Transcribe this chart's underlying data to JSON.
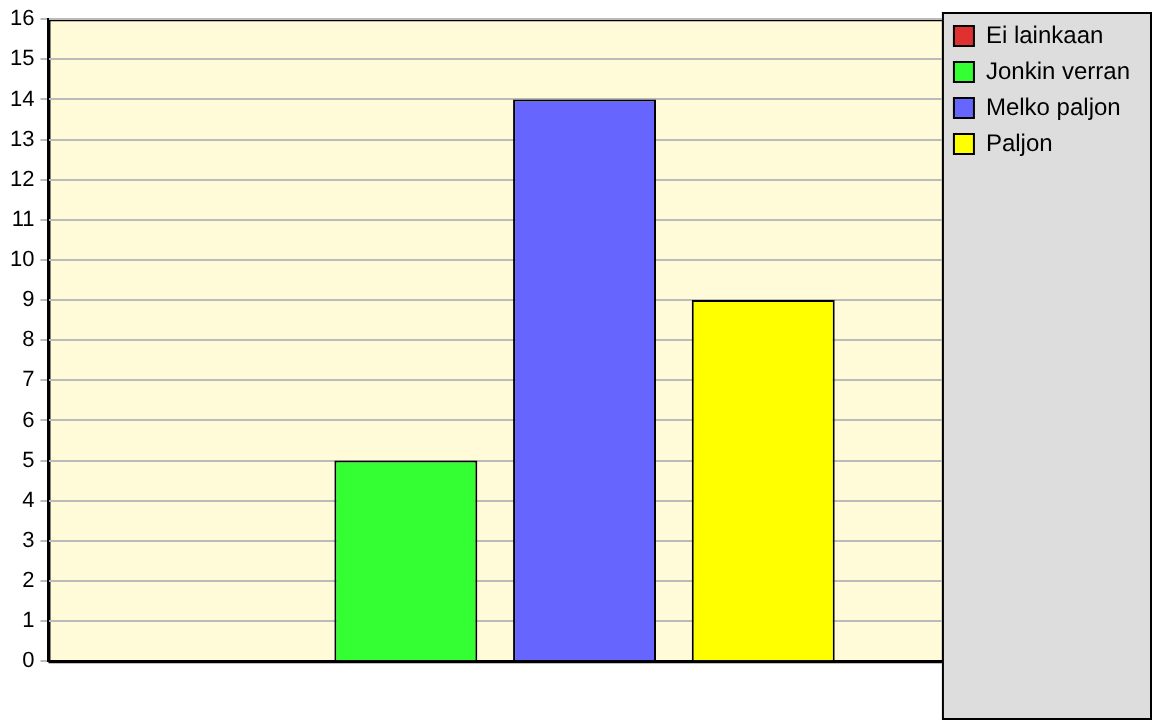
{
  "chart_data": {
    "type": "bar",
    "categories": [
      null
    ],
    "series": [
      {
        "name": "Ei lainkaan",
        "color": "#e03030",
        "values": [
          0
        ]
      },
      {
        "name": "Jonkin verran",
        "color": "#33ff33",
        "values": [
          5
        ]
      },
      {
        "name": "Melko paljon",
        "color": "#6666ff",
        "values": [
          14
        ]
      },
      {
        "name": "Paljon",
        "color": "#ffff00",
        "values": [
          9
        ]
      }
    ],
    "ylim": [
      0,
      16
    ],
    "yticks": [
      0,
      1,
      2,
      3,
      4,
      5,
      6,
      7,
      8,
      9,
      10,
      11,
      12,
      13,
      14,
      15,
      16
    ],
    "grid": "y",
    "legend": "top right"
  }
}
